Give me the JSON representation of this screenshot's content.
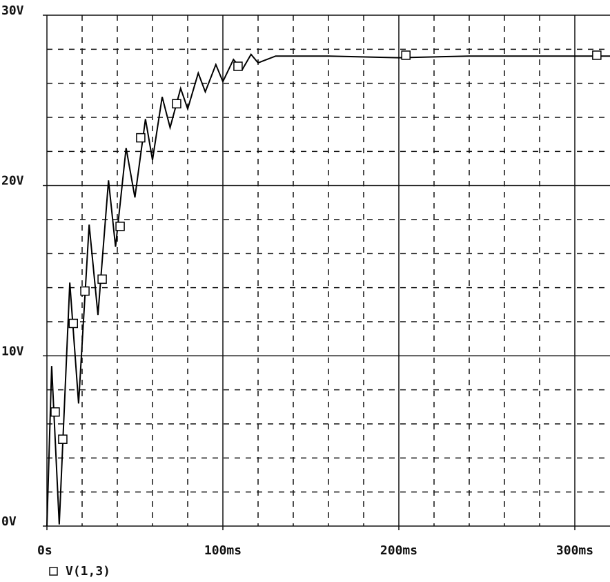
{
  "chart_data": {
    "type": "line",
    "xlim": [
      0,
      320
    ],
    "ylim": [
      0,
      30
    ],
    "xticks": [
      {
        "value": 0,
        "label": "0s"
      },
      {
        "value": 100,
        "label": "100ms"
      },
      {
        "value": 200,
        "label": "200ms"
      },
      {
        "value": 300,
        "label": "300ms"
      }
    ],
    "yticks": [
      {
        "value": 0,
        "label": "0V"
      },
      {
        "value": 10,
        "label": "10V"
      },
      {
        "value": 20,
        "label": "20V"
      },
      {
        "value": 30,
        "label": "30V"
      }
    ],
    "xminor_ticks": [
      20,
      40,
      60,
      80,
      120,
      140,
      160,
      180,
      220,
      240,
      260,
      280
    ],
    "yminor_ticks": [
      2,
      4,
      6,
      8,
      12,
      14,
      16,
      18,
      22,
      24,
      26,
      28
    ],
    "grid": true,
    "series": [
      {
        "name": "V(1,3)",
        "color": "#000000",
        "x": [
          0,
          2.7,
          7,
          13,
          18,
          24,
          29,
          35,
          39,
          45,
          50,
          56,
          60,
          65.5,
          70,
          76,
          80,
          86,
          90,
          96,
          100,
          106,
          111,
          116,
          120,
          130,
          160,
          200,
          240,
          280,
          320
        ],
        "values": [
          0,
          9.4,
          0.1,
          14.3,
          7.2,
          17.7,
          12.4,
          20.3,
          16.4,
          22.2,
          19.3,
          23.9,
          21.5,
          25.2,
          23.4,
          25.7,
          24.5,
          26.6,
          25.5,
          27.1,
          26.1,
          27.4,
          26.8,
          27.7,
          27.2,
          27.6,
          27.6,
          27.5,
          27.6,
          27.6,
          27.6
        ],
        "marker_x": [
          4.7,
          9,
          15,
          21.6,
          31.4,
          41.6,
          53.3,
          73.7,
          108.6,
          204,
          312.5
        ],
        "marker_values": [
          6.7,
          5.1,
          11.9,
          13.8,
          14.5,
          17.6,
          22.8,
          24.8,
          27.0,
          27.65,
          27.65
        ]
      }
    ]
  }
}
